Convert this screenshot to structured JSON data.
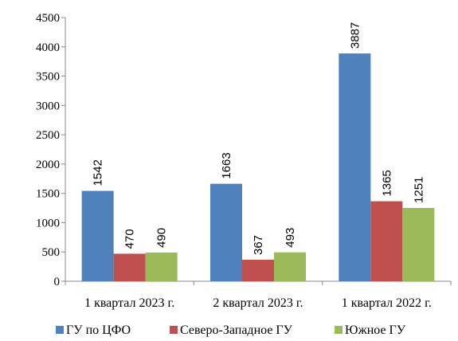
{
  "chart_data": {
    "type": "bar",
    "categories": [
      "1 квартал 2023 г.",
      "2 квартал 2023 г.",
      "1 квартал 2022 г."
    ],
    "series": [
      {
        "name": "ГУ по ЦФО",
        "color": "#4f81bd",
        "values": [
          1542,
          1663,
          3887
        ]
      },
      {
        "name": "Северо-Западное ГУ",
        "color": "#c0504d",
        "values": [
          470,
          367,
          1365
        ]
      },
      {
        "name": "Южное ГУ",
        "color": "#9bbb59",
        "values": [
          490,
          493,
          1251
        ]
      }
    ],
    "ylim": [
      0,
      4500
    ],
    "yticks": [
      0,
      500,
      1000,
      1500,
      2000,
      2500,
      3000,
      3500,
      4000,
      4500
    ],
    "grid": false,
    "legend_position": "bottom",
    "data_labels": "rotated"
  }
}
